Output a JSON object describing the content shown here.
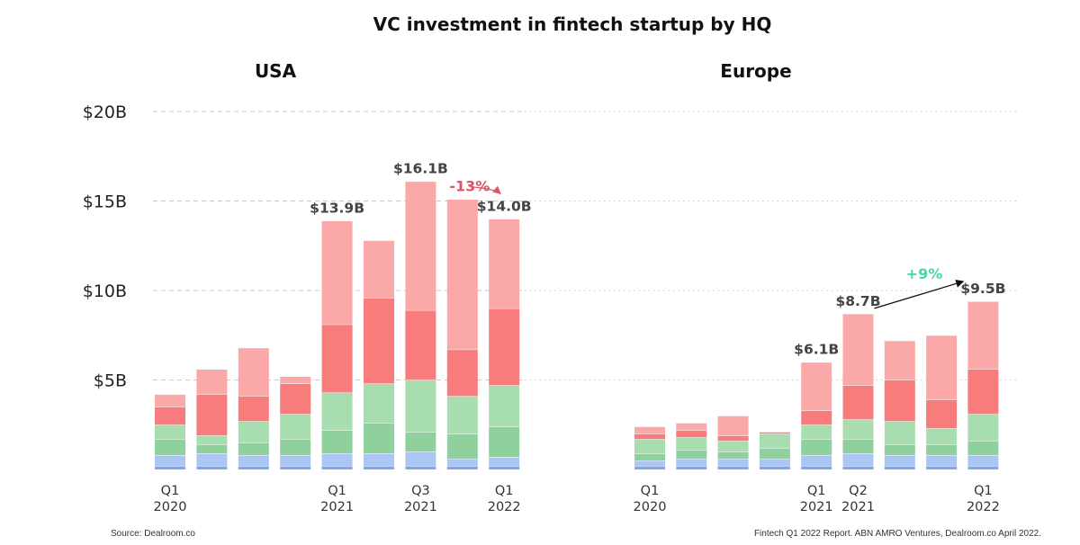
{
  "title": "VC investment in fintech startup by HQ",
  "colors": {
    "q_light_red": "#fba8a8",
    "q_red": "#f87c7c",
    "q_light_green": "#a8ddb0",
    "q_green": "#8ed19d",
    "q_light_blue": "#a9c6f5",
    "q_blue": "#7fa6ee",
    "grid": "#c8c8c8",
    "down_arrow": "#e05565",
    "up_text": "#3fd9a6",
    "up_arrow": "#111111",
    "total_label": "#444444"
  },
  "chart_data": [
    {
      "type": "bar",
      "stacked": true,
      "panel": "USA",
      "title": "USA",
      "ylim": [
        0,
        20
      ],
      "yticks": [
        {
          "value": 5,
          "label": "$5B"
        },
        {
          "value": 10,
          "label": "$10B"
        },
        {
          "value": 15,
          "label": "$15B"
        },
        {
          "value": 20,
          "label": "$20B"
        }
      ],
      "grid": true,
      "categories": [
        "Q1 2020",
        "Q2 2020",
        "Q3 2020",
        "Q4 2020",
        "Q1 2021",
        "Q2 2021",
        "Q3 2021",
        "Q4 2021",
        "Q1 2022"
      ],
      "tick_labels": [
        {
          "index": 0,
          "line1": "Q1",
          "line2": "2020"
        },
        {
          "index": 4,
          "line1": "Q1",
          "line2": "2021"
        },
        {
          "index": 6,
          "line1": "Q3",
          "line2": "2021"
        },
        {
          "index": 8,
          "line1": "Q1",
          "line2": "2022"
        }
      ],
      "series": [
        {
          "name": "segment-1",
          "color": "#7fa6ee",
          "values": [
            0.2,
            0.2,
            0.2,
            0.2,
            0.2,
            0.2,
            0.2,
            0.2,
            0.2
          ]
        },
        {
          "name": "segment-2",
          "color": "#a9c6f5",
          "values": [
            0.6,
            0.7,
            0.6,
            0.6,
            0.7,
            0.7,
            0.8,
            0.4,
            0.5
          ]
        },
        {
          "name": "segment-3",
          "color": "#8ed19d",
          "values": [
            0.9,
            0.5,
            0.7,
            0.9,
            1.3,
            1.7,
            1.1,
            1.4,
            1.7
          ]
        },
        {
          "name": "segment-4",
          "color": "#a8ddb0",
          "values": [
            0.8,
            0.5,
            1.2,
            1.4,
            2.1,
            2.2,
            2.9,
            2.1,
            2.3
          ]
        },
        {
          "name": "segment-5",
          "color": "#f87c7c",
          "values": [
            1.0,
            2.3,
            1.4,
            1.7,
            3.8,
            4.8,
            3.9,
            2.6,
            4.3
          ]
        },
        {
          "name": "segment-6",
          "color": "#fba8a8",
          "values": [
            0.7,
            1.4,
            2.7,
            0.4,
            5.8,
            3.2,
            7.2,
            8.4,
            5.0
          ]
        }
      ],
      "totals": [
        {
          "index": 4,
          "label": "$13.9B"
        },
        {
          "index": 6,
          "label": "$16.1B"
        },
        {
          "index": 8,
          "label": "$14.0B"
        }
      ],
      "annotation": {
        "text": "-13%",
        "from_index": 6,
        "to_index": 8,
        "direction": "down"
      }
    },
    {
      "type": "bar",
      "stacked": true,
      "panel": "Europe",
      "title": "Europe",
      "ylim": [
        0,
        20
      ],
      "grid": true,
      "categories": [
        "Q1 2020",
        "Q2 2020",
        "Q3 2020",
        "Q4 2020",
        "Q1 2021",
        "Q2 2021",
        "Q3 2021",
        "Q4 2021",
        "Q1 2022"
      ],
      "tick_labels": [
        {
          "index": 0,
          "line1": "Q1",
          "line2": "2020"
        },
        {
          "index": 4,
          "line1": "Q1",
          "line2": "2021"
        },
        {
          "index": 5,
          "line1": "Q2",
          "line2": "2021"
        },
        {
          "index": 8,
          "line1": "Q1",
          "line2": "2022"
        }
      ],
      "series": [
        {
          "name": "segment-1",
          "color": "#7fa6ee",
          "values": [
            0.2,
            0.2,
            0.2,
            0.2,
            0.2,
            0.2,
            0.2,
            0.2,
            0.2
          ]
        },
        {
          "name": "segment-2",
          "color": "#a9c6f5",
          "values": [
            0.3,
            0.4,
            0.4,
            0.4,
            0.6,
            0.7,
            0.6,
            0.6,
            0.6
          ]
        },
        {
          "name": "segment-3",
          "color": "#8ed19d",
          "values": [
            0.4,
            0.5,
            0.4,
            0.6,
            0.9,
            0.8,
            0.6,
            0.6,
            0.8
          ]
        },
        {
          "name": "segment-4",
          "color": "#a8ddb0",
          "values": [
            0.8,
            0.7,
            0.6,
            0.8,
            0.8,
            1.1,
            1.3,
            0.9,
            1.5
          ]
        },
        {
          "name": "segment-5",
          "color": "#f87c7c",
          "values": [
            0.3,
            0.4,
            0.3,
            0.1,
            0.8,
            1.9,
            2.3,
            1.6,
            2.5
          ]
        },
        {
          "name": "segment-6",
          "color": "#fba8a8",
          "values": [
            0.4,
            0.4,
            1.1,
            0.0,
            2.7,
            4.0,
            2.2,
            3.6,
            3.8
          ]
        }
      ],
      "totals": [
        {
          "index": 4,
          "label": "$6.1B"
        },
        {
          "index": 5,
          "label": "$8.7B"
        },
        {
          "index": 8,
          "label": "$9.5B"
        }
      ],
      "annotation": {
        "text": "+9%",
        "from_index": 5,
        "to_index": 8,
        "direction": "up"
      }
    }
  ],
  "footer": {
    "source": "Source: Dealroom.co",
    "credit": "Fintech Q1 2022 Report. ABN AMRO Ventures, Dealroom.co April 2022."
  }
}
